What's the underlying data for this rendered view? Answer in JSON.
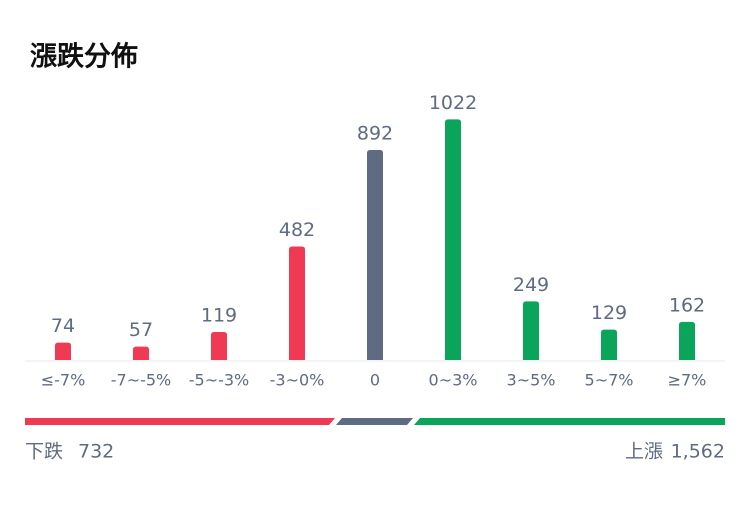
{
  "chart_data": {
    "type": "bar",
    "title": "漲跌分佈",
    "categories": [
      "≤-7%",
      "-7~-5%",
      "-5~-3%",
      "-3~0%",
      "0",
      "0~3%",
      "3~5%",
      "5~7%",
      "≥7%"
    ],
    "values": [
      74,
      57,
      119,
      482,
      892,
      1022,
      249,
      129,
      162
    ],
    "colors": [
      "#f03a54",
      "#f03a54",
      "#f03a54",
      "#f03a54",
      "#5f6b82",
      "#0aa55b",
      "#0aa55b",
      "#0aa55b",
      "#0aa55b"
    ]
  },
  "summary": {
    "down_label": "下跌",
    "down_count": "732",
    "up_label": "上漲",
    "up_count": "1,562"
  }
}
